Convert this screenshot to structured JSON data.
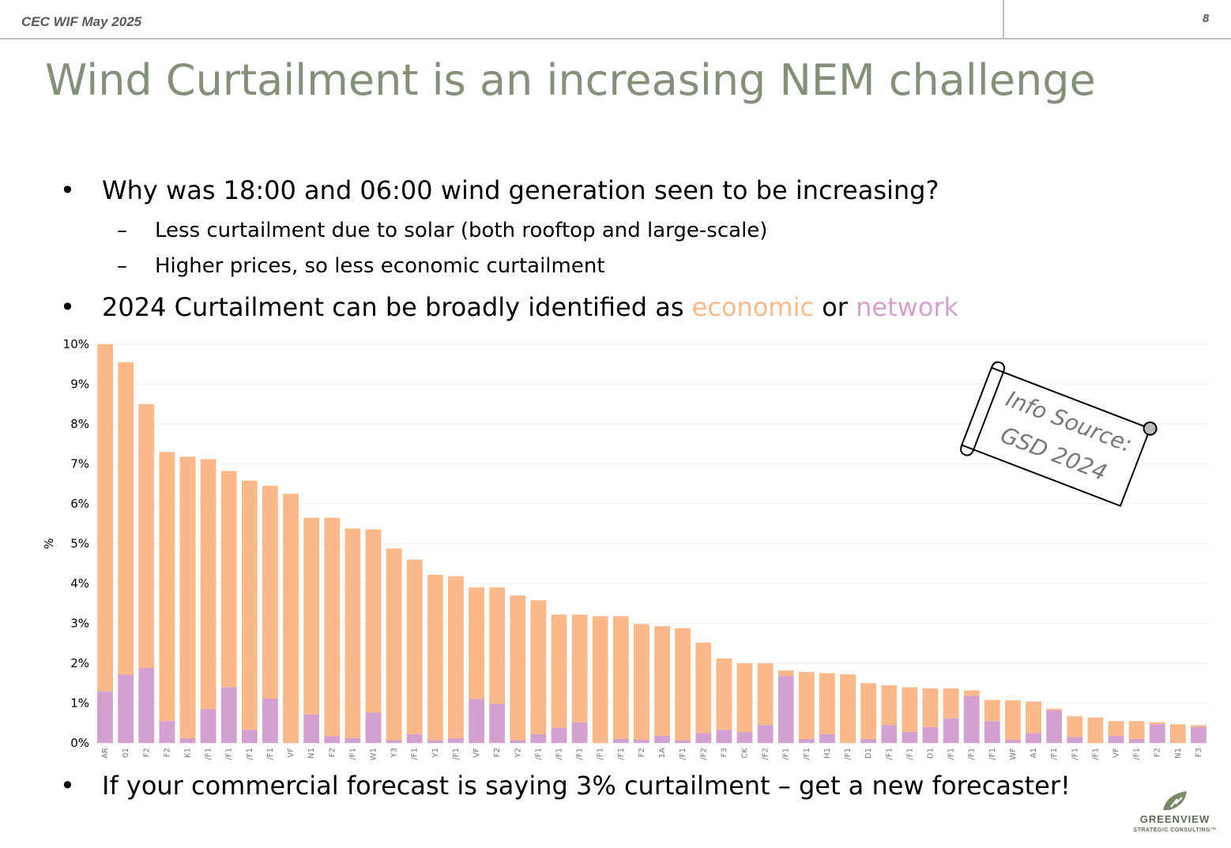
{
  "header": {
    "left_text": "CEC WIF May 2025",
    "page_number": "8"
  },
  "title": "Wind Curtailment is an increasing NEM challenge",
  "bullets": {
    "b1": "Why was 18:00 and 06:00 wind generation seen to be increasing?",
    "b1_sub1": "Less curtailment due to solar (both rooftop and large-scale)",
    "b1_sub2": "Higher prices, so less economic curtailment",
    "b2_prefix": "2024 Curtailment can be broadly identified as ",
    "b2_economic": "economic",
    "b2_or": " or ",
    "b2_network": "network",
    "b3": "If your commercial forecast is saying 3% curtailment – get a new forecaster!",
    "bullet_symbol": "•",
    "dash_symbol": "–"
  },
  "colors": {
    "title": "#868f79",
    "economic": "#f9b98a",
    "network": "#d4a0cf"
  },
  "scroll_note": {
    "line1": "Info Source:",
    "line2": "GSD 2024"
  },
  "logo": {
    "name": "GREENVIEW",
    "tagline": "STRATEGIC CONSULTING™",
    "icon": "leaf-bolt-icon"
  },
  "chart_data": {
    "type": "bar",
    "stacked": true,
    "ylabel": "%",
    "ylim": [
      0,
      10
    ],
    "y_ticks": [
      "0%",
      "1%",
      "2%",
      "3%",
      "4%",
      "5%",
      "6%",
      "7%",
      "8%",
      "9%",
      "10%"
    ],
    "grid": true,
    "categories": [
      "AR",
      "01",
      "F2",
      "F2",
      "K1",
      "/F1",
      "/F1",
      "/F1",
      "/F1",
      "VF",
      "N1",
      "F2",
      "/F1",
      "W1",
      "Y3",
      "/F1",
      "Y1",
      "/F1",
      "VF",
      "F2",
      "Y2",
      "/F1",
      "/F1",
      "/F1",
      "/F1",
      "/F1",
      "F2",
      "1A",
      "/F1",
      "/F2",
      "F3",
      "CK",
      "/F2",
      "/F1",
      "/F1",
      "H1",
      "/F1",
      "D1",
      "/F1",
      "/F1",
      "D1",
      "/F1",
      "/F1",
      "/F1",
      "WF",
      "A1",
      "/F1",
      "/F1",
      "/F1",
      "VF",
      "/F1",
      "F2",
      "N1",
      "F3"
    ],
    "totals": [
      10.0,
      9.55,
      8.5,
      7.3,
      7.18,
      7.12,
      6.82,
      6.58,
      6.45,
      6.25,
      5.65,
      5.65,
      5.38,
      5.36,
      4.88,
      4.6,
      4.22,
      4.18,
      3.9,
      3.9,
      3.7,
      3.58,
      3.22,
      3.22,
      3.18,
      3.18,
      2.98,
      2.93,
      2.88,
      2.52,
      2.12,
      2.0,
      2.0,
      1.82,
      1.78,
      1.75,
      1.72,
      1.5,
      1.45,
      1.4,
      1.37,
      1.37,
      1.32,
      1.08,
      1.07,
      1.04,
      0.86,
      0.67,
      0.64,
      0.55,
      0.55,
      0.52,
      0.47,
      0.45
    ],
    "series": [
      {
        "name": "network",
        "color": "#d4a0cf",
        "values": [
          1.3,
          1.72,
          1.88,
          0.55,
          0.12,
          0.85,
          1.4,
          0.33,
          1.12,
          0.0,
          0.72,
          0.17,
          0.12,
          0.76,
          0.07,
          0.22,
          0.07,
          0.12,
          1.1,
          0.98,
          0.07,
          0.22,
          0.38,
          0.52,
          0.0,
          0.1,
          0.08,
          0.18,
          0.07,
          0.25,
          0.33,
          0.27,
          0.45,
          1.68,
          0.1,
          0.22,
          0.0,
          0.1,
          0.45,
          0.28,
          0.4,
          0.62,
          1.18,
          0.55,
          0.08,
          0.25,
          0.82,
          0.15,
          0.0,
          0.18,
          0.1,
          0.47,
          0.0,
          0.4
        ]
      },
      {
        "name": "economic",
        "color": "#f9b98a",
        "values": [
          8.7,
          7.83,
          6.62,
          6.75,
          7.06,
          6.27,
          5.42,
          6.25,
          5.33,
          6.25,
          4.93,
          5.48,
          5.26,
          4.6,
          4.81,
          4.38,
          4.15,
          4.06,
          2.8,
          2.92,
          3.63,
          3.36,
          2.84,
          2.7,
          3.18,
          3.08,
          2.9,
          2.75,
          2.81,
          2.27,
          1.79,
          1.73,
          1.55,
          0.14,
          1.68,
          1.53,
          1.72,
          1.4,
          1.0,
          1.12,
          0.97,
          0.75,
          0.14,
          0.53,
          0.99,
          0.79,
          0.04,
          0.52,
          0.64,
          0.37,
          0.45,
          0.05,
          0.47,
          0.05
        ]
      }
    ]
  }
}
